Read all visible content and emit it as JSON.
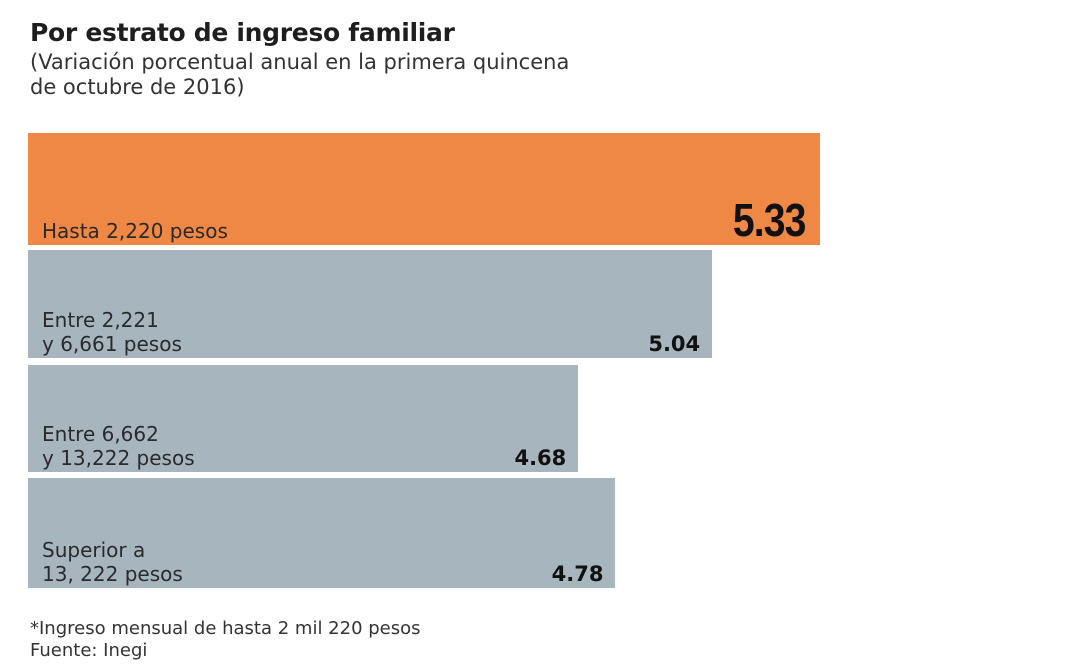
{
  "chart_data": {
    "type": "bar",
    "orientation": "horizontal",
    "title": "Por estrato de ingreso familiar",
    "subtitle": "(Variación porcentual anual en la primera quincena de octubre de 2016)",
    "categories": [
      "Hasta 2,220 pesos",
      "Entre 2,221\ny 6,661 pesos",
      "Entre 6,662\ny 13,222 pesos",
      "Superior a\n13, 222 pesos"
    ],
    "values": [
      5.33,
      5.04,
      4.68,
      4.78
    ],
    "value_labels": [
      "5.33",
      "5.04",
      "4.68",
      "4.78"
    ],
    "colors": [
      "#F08845",
      "#A7B5BF",
      "#A7B5BF",
      "#A7B5BF"
    ],
    "xlim": [
      3.2,
      5.33
    ],
    "grid": false,
    "xlabel": "",
    "ylabel": ""
  },
  "footnote": "*Ingreso mensual de hasta 2 mil 220 pesos",
  "source": "Fuente: Inegi"
}
